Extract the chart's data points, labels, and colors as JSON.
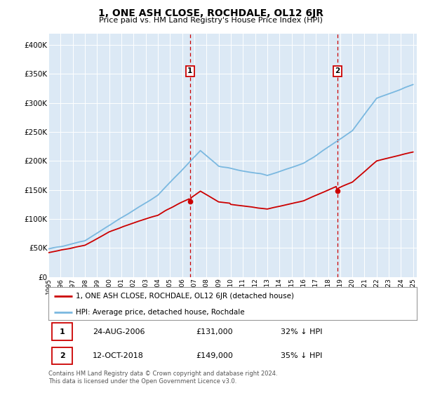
{
  "title": "1, ONE ASH CLOSE, ROCHDALE, OL12 6JR",
  "subtitle": "Price paid vs. HM Land Registry's House Price Index (HPI)",
  "bg_color": "#dce9f5",
  "ylabel_color": "#222222",
  "yticks": [
    0,
    50000,
    100000,
    150000,
    200000,
    250000,
    300000,
    350000,
    400000
  ],
  "ytick_labels": [
    "£0",
    "£50K",
    "£100K",
    "£150K",
    "£200K",
    "£250K",
    "£300K",
    "£350K",
    "£400K"
  ],
  "year_start": 1995,
  "year_end": 2025,
  "hpi_color": "#7ab8e0",
  "price_color": "#cc0000",
  "marker_color": "#cc0000",
  "vline_color": "#cc0000",
  "transaction1_year": 2006.65,
  "transaction1_price": 131000,
  "transaction2_year": 2018.79,
  "transaction2_price": 149000,
  "legend_label1": "1, ONE ASH CLOSE, ROCHDALE, OL12 6JR (detached house)",
  "legend_label2": "HPI: Average price, detached house, Rochdale",
  "table_row1": [
    "1",
    "24-AUG-2006",
    "£131,000",
    "32% ↓ HPI"
  ],
  "table_row2": [
    "2",
    "12-OCT-2018",
    "£149,000",
    "35% ↓ HPI"
  ],
  "footnote": "Contains HM Land Registry data © Crown copyright and database right 2024.\nThis data is licensed under the Open Government Licence v3.0."
}
